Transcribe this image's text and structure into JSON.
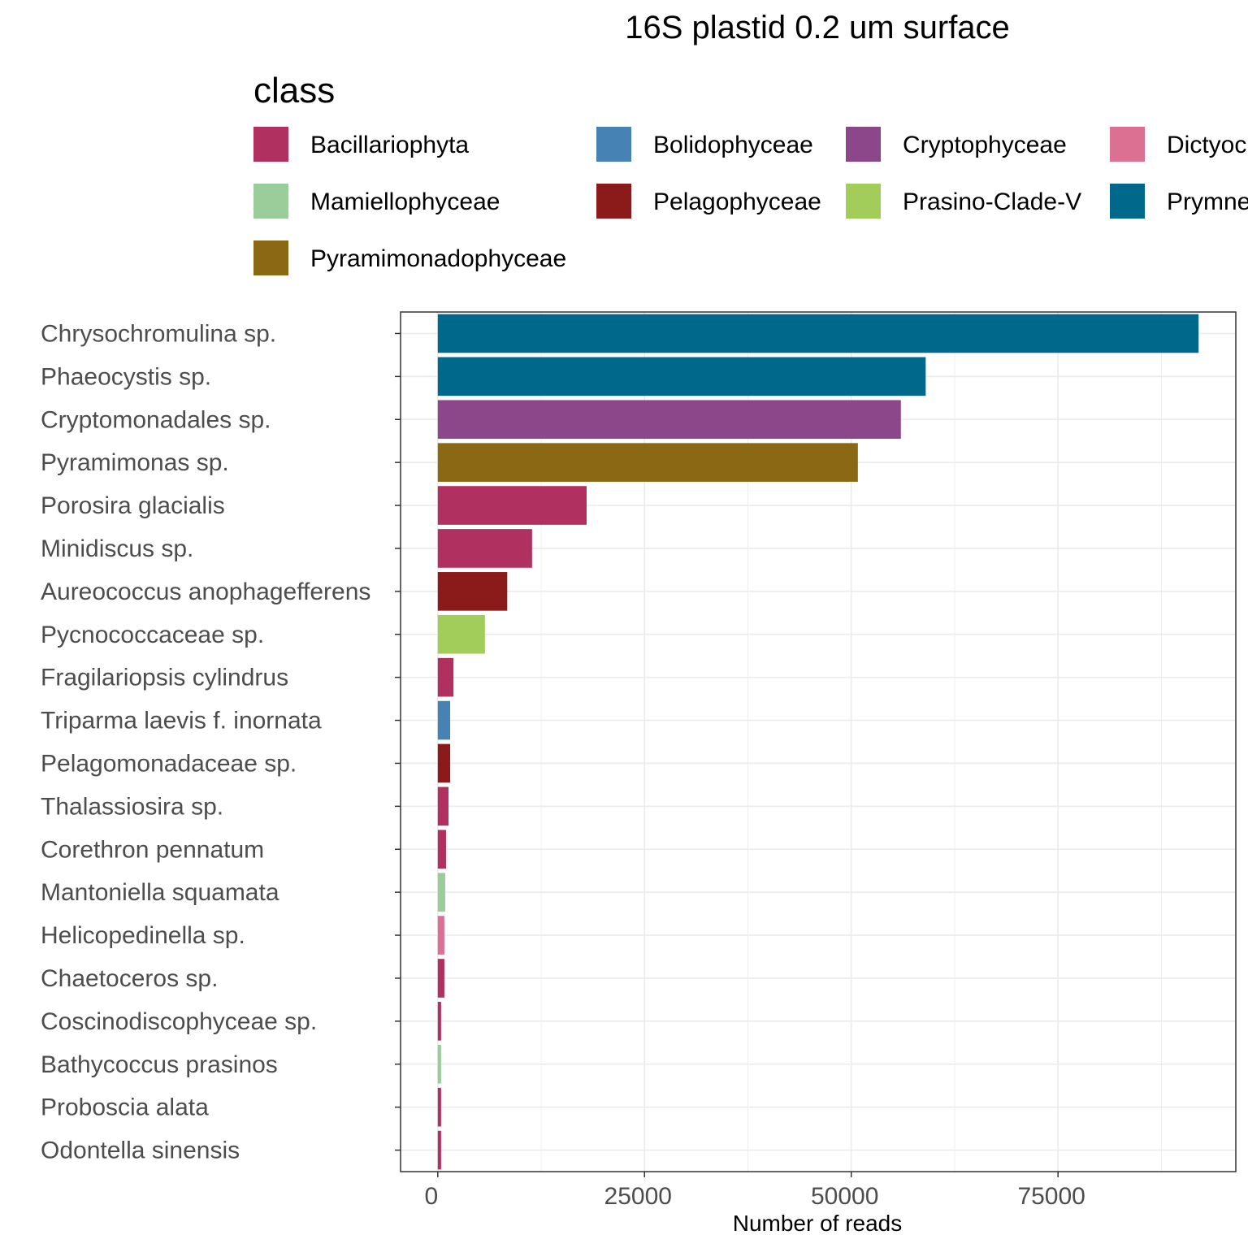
{
  "chart_data": {
    "type": "bar",
    "orientation": "horizontal",
    "title": "16S plastid 0.2 um surface",
    "xlabel": "Number of reads",
    "ylabel": "",
    "xlim": [
      -4500,
      96500
    ],
    "x_ticks": [
      0,
      25000,
      50000,
      75000
    ],
    "x_tick_labels": [
      "0",
      "25000",
      "50000",
      "75000"
    ],
    "grid": true,
    "legend": {
      "title": "class",
      "position": "top",
      "entries": [
        {
          "name": "Bacillariophyta",
          "color": "#b03060"
        },
        {
          "name": "Bolidophyceae",
          "color": "#4682b4"
        },
        {
          "name": "Cryptophyceae",
          "color": "#8b4789"
        },
        {
          "name": "Dictyochophyceae",
          "color": "#db7093"
        },
        {
          "name": "Mamiellophyceae",
          "color": "#9acd9a"
        },
        {
          "name": "Pelagophyceae",
          "color": "#8b1a1a"
        },
        {
          "name": "Prasino-Clade-V",
          "color": "#a2cd5a"
        },
        {
          "name": "Prymnesiophyceae",
          "color": "#00688b"
        },
        {
          "name": "Pyramimonadophyceae",
          "color": "#8b6914"
        }
      ]
    },
    "categories": [
      "Chrysochromulina sp.",
      "Phaeocystis sp.",
      "Cryptomonadales sp.",
      "Pyramimonas sp.",
      "Porosira glacialis",
      "Minidiscus sp.",
      "Aureococcus anophagefferens",
      "Pycnococcaceae sp.",
      "Fragilariopsis cylindrus",
      "Triparma laevis f. inornata",
      "Pelagomonadaceae sp.",
      "Thalassiosira sp.",
      "Corethron pennatum",
      "Mantoniella squamata",
      "Helicopedinella sp.",
      "Chaetoceros sp.",
      "Coscinodiscophyceae sp.",
      "Bathycoccus prasinos",
      "Proboscia alata",
      "Odontella sinensis"
    ],
    "values": [
      92000,
      59000,
      56000,
      50800,
      18000,
      11400,
      8400,
      5700,
      1900,
      1500,
      1500,
      1300,
      1000,
      900,
      800,
      800,
      400,
      400,
      400,
      400
    ],
    "classes": [
      "Prymnesiophyceae",
      "Prymnesiophyceae",
      "Cryptophyceae",
      "Pyramimonadophyceae",
      "Bacillariophyta",
      "Bacillariophyta",
      "Pelagophyceae",
      "Prasino-Clade-V",
      "Bacillariophyta",
      "Bolidophyceae",
      "Pelagophyceae",
      "Bacillariophyta",
      "Bacillariophyta",
      "Mamiellophyceae",
      "Dictyochophyceae",
      "Bacillariophyta",
      "Bacillariophyta",
      "Mamiellophyceae",
      "Bacillariophyta",
      "Bacillariophyta"
    ]
  }
}
